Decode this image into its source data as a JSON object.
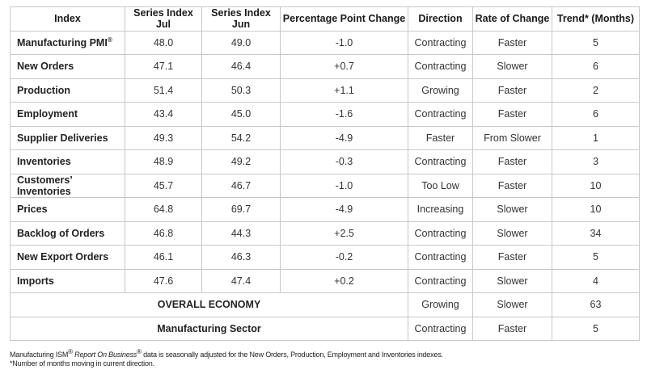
{
  "table": {
    "headers": [
      "Index",
      "Series Index Jul",
      "Series Index Jun",
      "Percentage Point Change",
      "Direction",
      "Rate of Change",
      "Trend* (Months)"
    ],
    "rows": [
      {
        "name": "Manufacturing PMI",
        "mark": "®",
        "jul": "48.0",
        "jun": "49.0",
        "change": "-1.0",
        "direction": "Contracting",
        "rate": "Faster",
        "trend": "5"
      },
      {
        "name": "New Orders",
        "jul": "47.1",
        "jun": "46.4",
        "change": "+0.7",
        "direction": "Contracting",
        "rate": "Slower",
        "trend": "6"
      },
      {
        "name": "Production",
        "jul": "51.4",
        "jun": "50.3",
        "change": "+1.1",
        "direction": "Growing",
        "rate": "Faster",
        "trend": "2"
      },
      {
        "name": "Employment",
        "jul": "43.4",
        "jun": "45.0",
        "change": "-1.6",
        "direction": "Contracting",
        "rate": "Faster",
        "trend": "6"
      },
      {
        "name": "Supplier Deliveries",
        "jul": "49.3",
        "jun": "54.2",
        "change": "-4.9",
        "direction": "Faster",
        "rate": "From Slower",
        "trend": "1"
      },
      {
        "name": "Inventories",
        "jul": "48.9",
        "jun": "49.2",
        "change": "-0.3",
        "direction": "Contracting",
        "rate": "Faster",
        "trend": "3"
      },
      {
        "name": "Customers’ Inventories",
        "jul": "45.7",
        "jun": "46.7",
        "change": "-1.0",
        "direction": "Too Low",
        "rate": "Faster",
        "trend": "10"
      },
      {
        "name": "Prices",
        "jul": "64.8",
        "jun": "69.7",
        "change": "-4.9",
        "direction": "Increasing",
        "rate": "Slower",
        "trend": "10"
      },
      {
        "name": "Backlog of Orders",
        "jul": "46.8",
        "jun": "44.3",
        "change": "+2.5",
        "direction": "Contracting",
        "rate": "Slower",
        "trend": "34"
      },
      {
        "name": "New Export Orders",
        "jul": "46.1",
        "jun": "46.3",
        "change": "-0.2",
        "direction": "Contracting",
        "rate": "Faster",
        "trend": "5"
      },
      {
        "name": "Imports",
        "jul": "47.6",
        "jun": "47.4",
        "change": "+0.2",
        "direction": "Contracting",
        "rate": "Slower",
        "trend": "4"
      }
    ],
    "summary_rows": [
      {
        "label": "OVERALL ECONOMY",
        "direction": "Growing",
        "rate": "Slower",
        "trend": "63"
      },
      {
        "label": "Manufacturing Sector",
        "direction": "Contracting",
        "rate": "Faster",
        "trend": "5"
      }
    ]
  },
  "footnotes": {
    "line1_a": "Manufacturing ISM",
    "line1_mark": "®",
    "line1_italic": "Report On Business",
    "line1_mark2": "®",
    "line1_b": " data is seasonally adjusted for the New Orders, Production, Employment and Inventories indexes.",
    "line2": "*Number of months moving in current direction."
  }
}
